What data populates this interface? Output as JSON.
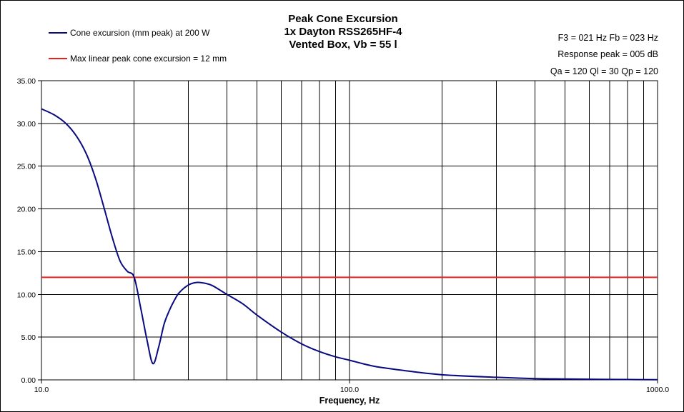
{
  "chart_data": {
    "type": "line",
    "title_lines": [
      "Peak Cone Excursion",
      "1x Dayton RSS265HF-4",
      "Vented Box, Vb = 55 l"
    ],
    "xlabel": "Frequency, Hz",
    "ylabel": "",
    "x_scale": "log",
    "xlim": [
      10,
      1000
    ],
    "ylim": [
      0,
      35
    ],
    "x_tick_labels": [
      "10.0",
      "100.0",
      "1000.0"
    ],
    "x_tick_values": [
      10,
      100,
      1000
    ],
    "x_minor_grid": [
      20,
      30,
      40,
      50,
      60,
      70,
      80,
      90,
      200,
      300,
      400,
      500,
      600,
      700,
      800,
      900
    ],
    "y_tick_labels": [
      "0.00",
      "5.00",
      "10.00",
      "15.00",
      "20.00",
      "25.00",
      "30.00",
      "35.00"
    ],
    "y_tick_values": [
      0,
      5,
      10,
      15,
      20,
      25,
      30,
      35
    ],
    "grid": true,
    "legend_position": "top-left",
    "parameters": [
      "F3 = 021 Hz  Fb = 023 Hz",
      "Response  peak = 005 dB",
      "Qa = 120  Ql = 30  Qp = 120"
    ],
    "series": [
      {
        "name": "Cone excursion (mm peak) at 200 W",
        "color": "#0a0a80",
        "x": [
          10,
          11,
          12,
          13,
          14,
          15,
          16,
          17,
          18,
          19,
          20,
          21,
          22,
          23,
          24,
          25,
          26,
          27,
          28,
          30,
          32,
          34,
          36,
          40,
          45,
          50,
          60,
          70,
          80,
          90,
          100,
          120,
          150,
          200,
          300,
          400,
          500,
          700,
          1000
        ],
        "y": [
          31.7,
          31.0,
          30.0,
          28.5,
          26.4,
          23.5,
          20.0,
          16.6,
          13.9,
          12.7,
          12.0,
          8.4,
          4.7,
          1.9,
          3.8,
          6.5,
          8.1,
          9.3,
          10.2,
          11.1,
          11.4,
          11.3,
          11.0,
          10.0,
          8.9,
          7.6,
          5.6,
          4.2,
          3.3,
          2.7,
          2.3,
          1.6,
          1.1,
          0.6,
          0.3,
          0.15,
          0.1,
          0.05,
          0.02
        ]
      },
      {
        "name": "Max linear peak cone excursion = 12 mm",
        "color": "#e8201c",
        "x": [
          10,
          1000
        ],
        "y": [
          12,
          12
        ]
      }
    ]
  }
}
